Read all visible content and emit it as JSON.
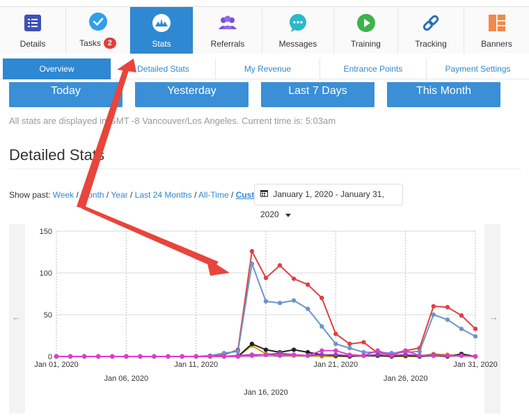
{
  "topnav": {
    "items": [
      {
        "label": "Details",
        "icon": "list-icon",
        "color": "#3f51b5"
      },
      {
        "label": "Tasks",
        "icon": "check-circle-icon",
        "badge": "2",
        "color": "#2f9fea"
      },
      {
        "label": "Stats",
        "icon": "stats-gauge-icon",
        "active": true
      },
      {
        "label": "Referrals",
        "icon": "people-icon",
        "color": "#7b4fd6"
      },
      {
        "label": "Messages",
        "icon": "chat-bubble-icon",
        "color": "#2bb8c9"
      },
      {
        "label": "Training",
        "icon": "play-circle-icon",
        "color": "#3db34a"
      },
      {
        "label": "Tracking",
        "icon": "link-icon",
        "color": "#2a6fb8"
      },
      {
        "label": "Banners",
        "icon": "layout-icon",
        "color": "#f08a4b"
      }
    ]
  },
  "subnav": {
    "items": [
      {
        "label": "Overview",
        "active": true
      },
      {
        "label": "Detailed Stats"
      },
      {
        "label": "My Revenue"
      },
      {
        "label": "Entrance Points"
      },
      {
        "label": "Payment Settings"
      }
    ]
  },
  "range_buttons": [
    "Today",
    "Yesterday",
    "Last 7 Days",
    "This Month"
  ],
  "timezone_note": "All stats are displayed in GMT -8 Vancouver/Los Angeles. Current time is: 5:03am",
  "section_title": "Detailed Stats",
  "show_past": {
    "label": "Show past:",
    "links": [
      "Week",
      "Month",
      "Year",
      "Last 24 Months",
      "All-Time",
      "Custom"
    ],
    "suffix": ":"
  },
  "date_range": "January 1, 2020 - January 31, 2020",
  "annotation_color": "#e8453c",
  "chart_data": {
    "type": "line",
    "ylim": [
      0,
      150
    ],
    "yticks": [
      0,
      50,
      100,
      150
    ],
    "x": [
      1,
      2,
      3,
      4,
      5,
      6,
      7,
      8,
      9,
      10,
      11,
      12,
      13,
      14,
      15,
      16,
      17,
      18,
      19,
      20,
      21,
      22,
      23,
      24,
      25,
      26,
      27,
      28,
      29,
      30,
      31
    ],
    "x_tick_labels": [
      {
        "day": 1,
        "label": "Jan 01, 2020"
      },
      {
        "day": 6,
        "label": "Jan 06, 2020"
      },
      {
        "day": 11,
        "label": "Jan 11, 2020"
      },
      {
        "day": 16,
        "label": "Jan 16, 2020"
      },
      {
        "day": 21,
        "label": "Jan 21, 2020"
      },
      {
        "day": 26,
        "label": "Jan 26, 2020"
      },
      {
        "day": 31,
        "label": "Jan 31, 2020"
      }
    ],
    "series": [
      {
        "color": "#e04040",
        "values": [
          0,
          0,
          0,
          0,
          0,
          0,
          0,
          0,
          0,
          0,
          0,
          0,
          2,
          8,
          126,
          94,
          109,
          93,
          86,
          70,
          27,
          15,
          17,
          4,
          3,
          7,
          10,
          60,
          59,
          49,
          33
        ]
      },
      {
        "color": "#6b96c9",
        "values": [
          0,
          0,
          0,
          0,
          0,
          0,
          0,
          0,
          0,
          0,
          0,
          1,
          4,
          6,
          111,
          66,
          64,
          67,
          57,
          36,
          15,
          10,
          5,
          5,
          4,
          5,
          6,
          50,
          44,
          33,
          24
        ]
      },
      {
        "color": "#c8a400",
        "values": [
          0,
          0,
          0,
          0,
          0,
          0,
          0,
          0,
          0,
          0,
          0,
          0,
          0,
          0,
          13,
          3,
          2,
          1,
          1,
          0,
          0,
          0,
          1,
          1,
          0,
          0,
          0,
          3,
          2,
          1,
          0
        ]
      },
      {
        "color": "#222222",
        "values": [
          0,
          0,
          0,
          0,
          0,
          0,
          0,
          0,
          0,
          0,
          0,
          0,
          0,
          0,
          15,
          8,
          5,
          8,
          5,
          2,
          1,
          0,
          1,
          1,
          0,
          1,
          0,
          1,
          0,
          3,
          0
        ]
      },
      {
        "color": "#9b3fb5",
        "values": [
          0,
          0,
          0,
          0,
          0,
          0,
          0,
          0,
          0,
          0,
          0,
          0,
          0,
          1,
          2,
          2,
          4,
          2,
          1,
          2,
          2,
          1,
          1,
          2,
          1,
          2,
          1,
          2,
          1,
          1,
          0
        ]
      },
      {
        "color": "#e03bd0",
        "values": [
          0,
          0,
          0,
          0,
          0,
          0,
          0,
          0,
          0,
          0,
          0,
          0,
          0,
          0,
          1,
          2,
          1,
          2,
          1,
          7,
          7,
          2,
          1,
          7,
          1,
          7,
          1,
          1,
          1,
          1,
          0
        ]
      }
    ],
    "grid": true
  }
}
